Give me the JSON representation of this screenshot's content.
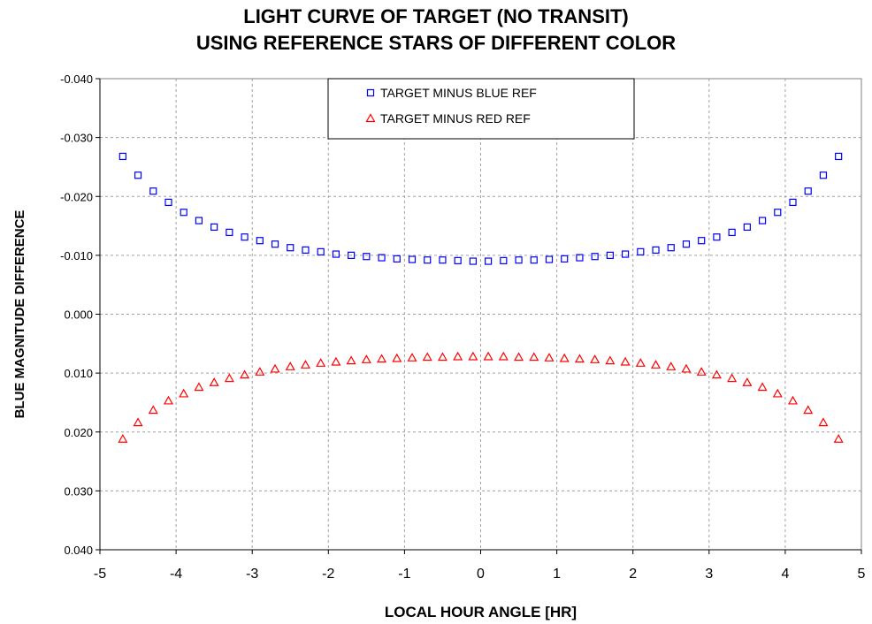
{
  "chart_data": {
    "type": "scatter",
    "title": [
      "LIGHT CURVE OF TARGET (NO TRANSIT)",
      "USING REFERENCE STARS OF DIFFERENT COLOR"
    ],
    "xlabel": "LOCAL HOUR ANGLE [HR]",
    "ylabel": "BLUE MAGNITUDE DIFFERENCE",
    "xlim": [
      -5,
      5
    ],
    "ylim": [
      -0.04,
      0.04
    ],
    "y_inverted": true,
    "grid": true,
    "legend_position": "top-center",
    "x_ticks": [
      "-5",
      "-4",
      "-3",
      "-2",
      "-1",
      "0",
      "1",
      "2",
      "3",
      "4",
      "5"
    ],
    "y_ticks": [
      "-0.040",
      "-0.030",
      "-0.020",
      "-0.010",
      "0.000",
      "0.010",
      "0.020",
      "0.030",
      "0.040"
    ],
    "x": [
      -4.7,
      -4.5,
      -4.3,
      -4.1,
      -3.9,
      -3.7,
      -3.5,
      -3.3,
      -3.1,
      -2.9,
      -2.7,
      -2.5,
      -2.3,
      -2.1,
      -1.9,
      -1.7,
      -1.5,
      -1.3,
      -1.1,
      -0.9,
      -0.7,
      -0.5,
      -0.3,
      -0.1,
      0.1,
      0.3,
      0.5,
      0.7,
      0.9,
      1.1,
      1.3,
      1.5,
      1.7,
      1.9,
      2.1,
      2.3,
      2.5,
      2.7,
      2.9,
      3.1,
      3.3,
      3.5,
      3.7,
      3.9,
      4.1,
      4.3,
      4.5,
      4.7
    ],
    "series": [
      {
        "name": "TARGET MINUS BLUE REF",
        "marker": "square",
        "color": "#0000ff",
        "values": [
          -0.0268,
          -0.0236,
          -0.0209,
          -0.019,
          -0.0173,
          -0.0159,
          -0.0148,
          -0.0139,
          -0.0131,
          -0.0125,
          -0.0119,
          -0.0113,
          -0.0109,
          -0.0106,
          -0.0102,
          -0.01,
          -0.0098,
          -0.0096,
          -0.0094,
          -0.0093,
          -0.0092,
          -0.0092,
          -0.0091,
          -0.009,
          -0.009,
          -0.0091,
          -0.0092,
          -0.0092,
          -0.0093,
          -0.0094,
          -0.0096,
          -0.0098,
          -0.01,
          -0.0102,
          -0.0106,
          -0.0109,
          -0.0113,
          -0.0119,
          -0.0125,
          -0.0131,
          -0.0139,
          -0.0148,
          -0.0159,
          -0.0173,
          -0.019,
          -0.0209,
          -0.0236,
          -0.0268
        ]
      },
      {
        "name": "TARGET MINUS RED REF",
        "marker": "triangle",
        "color": "#ff0000",
        "values": [
          0.0212,
          0.0184,
          0.0163,
          0.0147,
          0.0135,
          0.0124,
          0.0116,
          0.0109,
          0.0103,
          0.0098,
          0.0093,
          0.0089,
          0.0086,
          0.0083,
          0.0081,
          0.0079,
          0.0077,
          0.0076,
          0.0075,
          0.0074,
          0.0073,
          0.0073,
          0.0072,
          0.0072,
          0.0072,
          0.0072,
          0.0073,
          0.0073,
          0.0074,
          0.0075,
          0.0076,
          0.0077,
          0.0079,
          0.0081,
          0.0083,
          0.0086,
          0.0089,
          0.0093,
          0.0098,
          0.0103,
          0.0109,
          0.0116,
          0.0124,
          0.0135,
          0.0147,
          0.0163,
          0.0184,
          0.0212
        ]
      }
    ]
  }
}
